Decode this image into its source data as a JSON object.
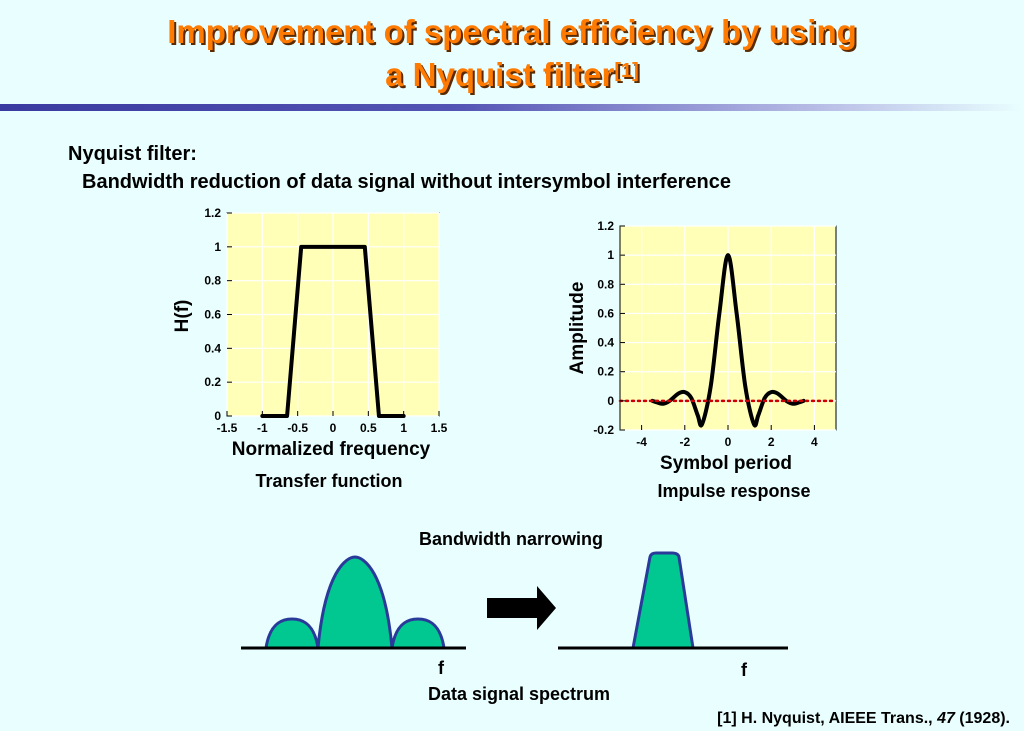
{
  "header": {
    "title_line1": "Improvement of spectral efficiency by using",
    "title_line2": "a Nyquist filter",
    "title_ref": "[1]"
  },
  "intro": {
    "heading": "Nyquist filter:",
    "subtitle": "Bandwidth reduction of data signal without intersymbol interference"
  },
  "chart_data": [
    {
      "type": "line",
      "caption": "Transfer function",
      "xlabel": "Normalized frequency",
      "ylabel": "H(f)",
      "xlim": [
        -1.5,
        1.5
      ],
      "ylim": [
        0,
        1.2
      ],
      "xticks": [
        "-1.5",
        "-1",
        "-0.5",
        "0",
        "0.5",
        "1",
        "1.5"
      ],
      "yticks": [
        "0",
        "0.2",
        "0.4",
        "0.6",
        "0.8",
        "1",
        "1.2"
      ],
      "grid": true,
      "background": "#ffffb8",
      "series": [
        {
          "color": "#000000",
          "x": [
            -1.0,
            -0.65,
            -0.55,
            -0.45,
            -0.35,
            0.35,
            0.45,
            0.55,
            0.65,
            1.0
          ],
          "y": [
            0,
            0,
            0.5,
            1,
            1,
            1,
            1,
            0.5,
            0,
            0
          ]
        }
      ]
    },
    {
      "type": "line",
      "caption": "Impulse response",
      "xlabel": "Symbol period",
      "ylabel": "Amplitude",
      "xlim": [
        -5,
        5
      ],
      "ylim": [
        -0.2,
        1.2
      ],
      "xticks": [
        "-4",
        "-2",
        "0",
        "2",
        "4"
      ],
      "yticks": [
        "-0.2",
        "0",
        "0.2",
        "0.4",
        "0.6",
        "0.8",
        "1",
        "1.2"
      ],
      "grid": true,
      "background": "#ffffb8",
      "series": [
        {
          "color": "#000000",
          "x": [
            -3.5,
            -3.3,
            -3.0,
            -2.7,
            -2.3,
            -2.0,
            -1.7,
            -1.4,
            -1.2,
            -0.8,
            -0.4,
            0,
            0.4,
            0.8,
            1.2,
            1.4,
            1.7,
            2.0,
            2.3,
            2.7,
            3.0,
            3.3,
            3.5
          ],
          "y": [
            0,
            -0.01,
            -0.02,
            0,
            0.05,
            0.06,
            0.02,
            -0.1,
            -0.16,
            0.1,
            0.6,
            1,
            0.6,
            0.1,
            -0.16,
            -0.1,
            0.02,
            0.06,
            0.05,
            0,
            -0.02,
            -0.01,
            0
          ]
        },
        {
          "color": "#cc0000",
          "style": "dotted",
          "x": [
            -5,
            5
          ],
          "y": [
            0,
            0
          ]
        }
      ]
    }
  ],
  "spectrum": {
    "caption": "Bandwidth narrowing",
    "axis_label_left": "f",
    "axis_label_right": "f",
    "bottom_caption": "Data signal spectrum",
    "fill_color": "#00c890",
    "stroke_color": "#2a3a9a"
  },
  "reference": {
    "prefix": "[1] H. Nyquist, AIEEE Trans., ",
    "volume": "47",
    "suffix": " (1928)."
  }
}
